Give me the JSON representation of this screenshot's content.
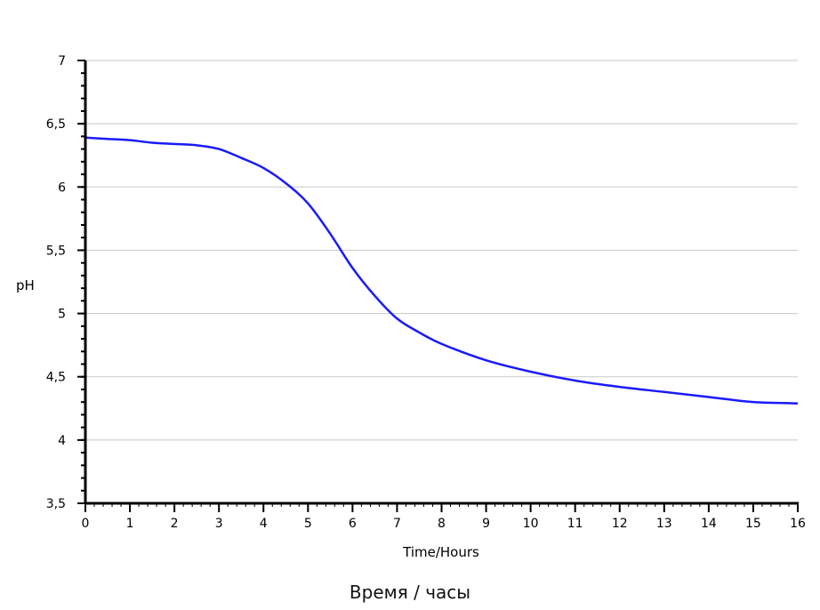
{
  "chart_data": {
    "type": "line",
    "xlabel": "Time/Hours",
    "ylabel": "pH",
    "xlim": [
      0,
      16
    ],
    "ylim": [
      3.5,
      7
    ],
    "x_ticks": [
      0,
      1,
      2,
      3,
      4,
      5,
      6,
      7,
      8,
      9,
      10,
      11,
      12,
      13,
      14,
      15,
      16
    ],
    "x_tick_labels": [
      "0",
      "1",
      "2",
      "3",
      "4",
      "5",
      "6",
      "7",
      "8",
      "9",
      "10",
      "11",
      "12",
      "13",
      "14",
      "15",
      "16"
    ],
    "y_ticks": [
      3.5,
      4,
      4.5,
      5,
      5.5,
      6,
      6.5,
      7
    ],
    "y_tick_labels": [
      "3,5",
      "4",
      "4,5",
      "5",
      "5,5",
      "6",
      "6,5",
      "7"
    ],
    "grid": "horizontal",
    "series_color": "#1a1aff",
    "grid_color": "#c8c8c8",
    "series": [
      {
        "x": [
          0,
          0.5,
          1,
          1.5,
          2,
          2.5,
          3,
          3.5,
          4,
          4.5,
          5,
          5.5,
          6,
          6.5,
          7,
          7.5,
          8,
          9,
          10,
          11,
          12,
          13,
          14,
          15,
          16
        ],
        "y": [
          6.39,
          6.38,
          6.37,
          6.35,
          6.34,
          6.33,
          6.3,
          6.23,
          6.15,
          6.03,
          5.87,
          5.63,
          5.36,
          5.14,
          4.96,
          4.85,
          4.76,
          4.63,
          4.54,
          4.47,
          4.42,
          4.38,
          4.34,
          4.3,
          4.29
        ]
      }
    ]
  },
  "caption": "Время / часы"
}
